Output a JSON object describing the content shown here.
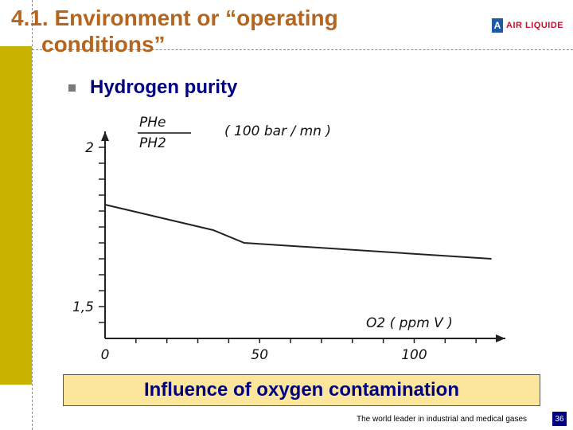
{
  "header": {
    "title_line1": "4.1. Environment or “operating",
    "title_line2": "conditions”",
    "logo_text": "AIR LIQUIDE"
  },
  "bullet": {
    "text": "Hydrogen purity"
  },
  "chart_data": {
    "type": "line",
    "title": "",
    "ylabel_num": "PHe",
    "ylabel_den": "PH2",
    "ylabel_unit": "( 100 bar / mn )",
    "xlabel": "O2 ( ppm V )",
    "xlim": [
      0,
      130
    ],
    "ylim": [
      1.4,
      2.05
    ],
    "x_ticks": [
      0,
      50,
      100
    ],
    "x_tick_labels": [
      "0",
      "50",
      "100"
    ],
    "y_ticks": [
      1.5,
      2
    ],
    "y_tick_labels": [
      "1,5",
      "2"
    ],
    "grid": false,
    "series": [
      {
        "x": [
          0,
          35,
          45,
          125
        ],
        "y": [
          1.82,
          1.74,
          1.7,
          1.65
        ]
      }
    ]
  },
  "caption": {
    "text": "Influence of oxygen contamination"
  },
  "footer": {
    "tagline": "The world leader in industrial and medical gases",
    "page_number": "36"
  },
  "colors": {
    "title": "#b5651d",
    "accent_bar": "#c8b400",
    "navy": "#000080",
    "caption_bg": "#fbe69b"
  }
}
